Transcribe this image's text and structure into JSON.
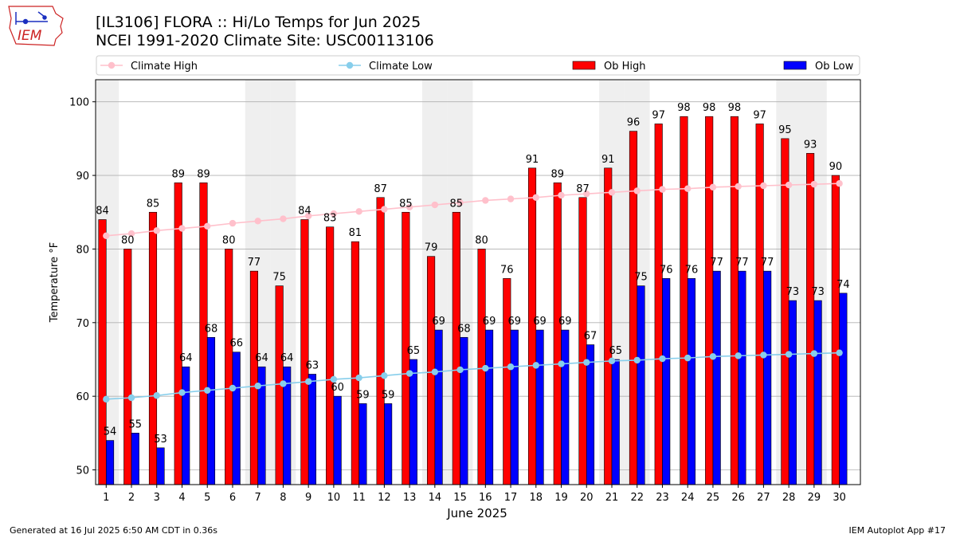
{
  "header": {
    "title_line1": "[IL3106] FLORA :: Hi/Lo Temps for Jun 2025",
    "title_line2": "NCEI 1991-2020 Climate Site: USC00113106"
  },
  "logo": {
    "text": "IEM",
    "icon": "iowa-state-outline-logo"
  },
  "footer": {
    "generated": "Generated at 16 Jul 2025 6:50 AM CDT in 0.36s",
    "app": "IEM Autoplot App #17"
  },
  "colors": {
    "ob_high": "#ff0000",
    "ob_low": "#0000ff",
    "climate_high": "#ffc0cb",
    "climate_low": "#87ceeb",
    "weekend_band": "#efefef",
    "grid": "#b0b0b0"
  },
  "chart_data": {
    "type": "bar",
    "xlabel": "June 2025",
    "ylabel": "Temperature °F",
    "ylim": [
      48,
      103
    ],
    "yticks": [
      50,
      60,
      70,
      80,
      90,
      100
    ],
    "grid": "horizontal",
    "legend_placement": "top",
    "categories": [
      1,
      2,
      3,
      4,
      5,
      6,
      7,
      8,
      9,
      10,
      11,
      12,
      13,
      14,
      15,
      16,
      17,
      18,
      19,
      20,
      21,
      22,
      23,
      24,
      25,
      26,
      27,
      28,
      29,
      30
    ],
    "weekend_days": [
      1,
      7,
      8,
      14,
      15,
      21,
      22,
      28,
      29
    ],
    "series": [
      {
        "name": "Climate High",
        "kind": "line",
        "values": [
          81.8,
          82.1,
          82.5,
          82.8,
          83.1,
          83.5,
          83.8,
          84.1,
          84.5,
          84.8,
          85.1,
          85.4,
          85.7,
          86.0,
          86.3,
          86.6,
          86.8,
          87.0,
          87.3,
          87.5,
          87.7,
          87.9,
          88.1,
          88.2,
          88.4,
          88.5,
          88.6,
          88.7,
          88.8,
          88.9
        ]
      },
      {
        "name": "Climate Low",
        "kind": "line",
        "values": [
          59.6,
          59.8,
          60.1,
          60.5,
          60.8,
          61.1,
          61.4,
          61.7,
          62.0,
          62.3,
          62.5,
          62.8,
          63.1,
          63.3,
          63.6,
          63.8,
          64.0,
          64.2,
          64.4,
          64.6,
          64.8,
          64.9,
          65.1,
          65.2,
          65.4,
          65.5,
          65.6,
          65.7,
          65.8,
          65.9
        ]
      },
      {
        "name": "Ob High",
        "kind": "bar",
        "values": [
          84,
          80,
          85,
          89,
          89,
          80,
          77,
          75,
          84,
          83,
          81,
          87,
          85,
          79,
          85,
          80,
          76,
          91,
          89,
          87,
          91,
          96,
          97,
          98,
          98,
          98,
          97,
          95,
          93,
          90
        ]
      },
      {
        "name": "Ob Low",
        "kind": "bar",
        "values": [
          54,
          55,
          53,
          64,
          68,
          66,
          64,
          64,
          63,
          60,
          59,
          59,
          65,
          69,
          68,
          69,
          69,
          69,
          69,
          67,
          65,
          75,
          76,
          76,
          77,
          77,
          77,
          73,
          73,
          74
        ]
      }
    ]
  }
}
